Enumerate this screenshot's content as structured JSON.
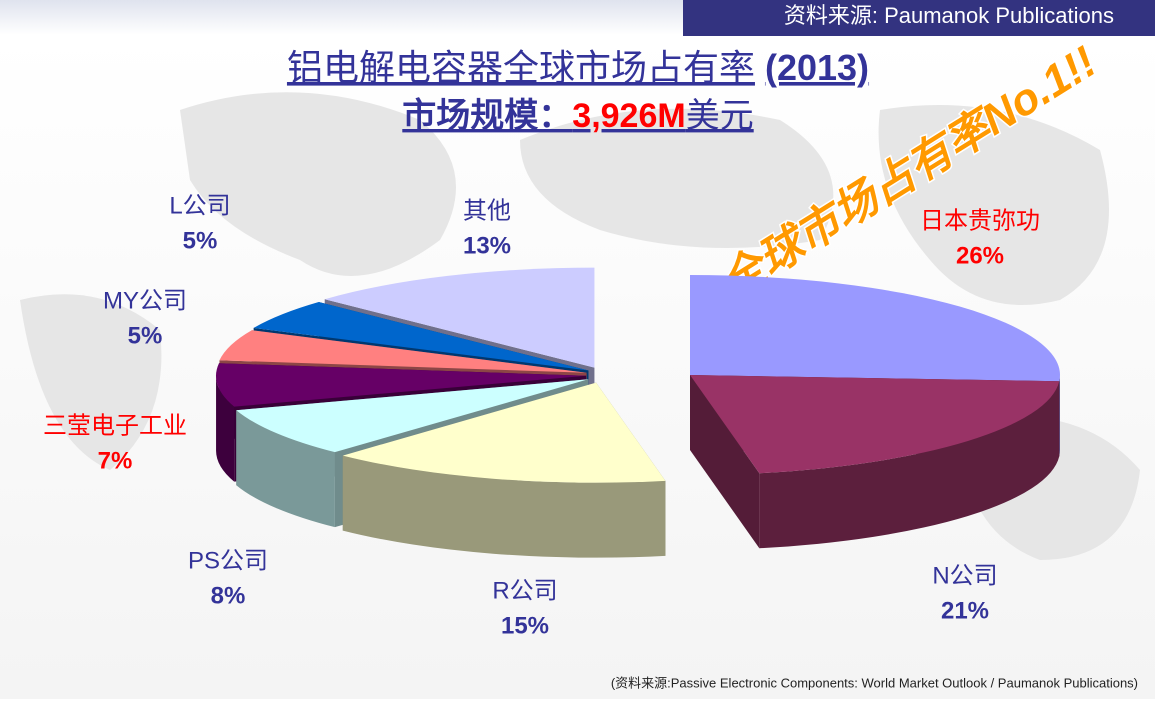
{
  "source": "资料来源:  Paumanok Publications",
  "chart_data": {
    "type": "pie3d",
    "title": [
      "铝电解电容器全球市场占有率",
      "(2013)"
    ],
    "subtitle": [
      "市场规模：",
      "3,926M",
      "美元"
    ],
    "annotation": "全球市场占有率No.1!!",
    "categories": [
      "日本贵弥功",
      "N公司",
      "R公司",
      "PS公司",
      "三莹电子工业",
      "MY公司",
      "L公司",
      "其他"
    ],
    "values": [
      26,
      21,
      15,
      8,
      7,
      5,
      5,
      13
    ],
    "value_labels": [
      "26%",
      "21%",
      "15%",
      "8%",
      "7%",
      "5%",
      "5%",
      "13%"
    ],
    "colors": [
      "#9999ff",
      "#993366",
      "#ffffcc",
      "#ccffff",
      "#660066",
      "#ff8080",
      "#0066cc",
      "#ccccff"
    ],
    "label_colors": [
      "#ff0000",
      "#333399",
      "#333399",
      "#333399",
      "#ff0000",
      "#333399",
      "#333399",
      "#333399"
    ]
  },
  "footer": "(资料来源:Passive Electronic Components: World Market Outlook / Paumanok Publications)"
}
